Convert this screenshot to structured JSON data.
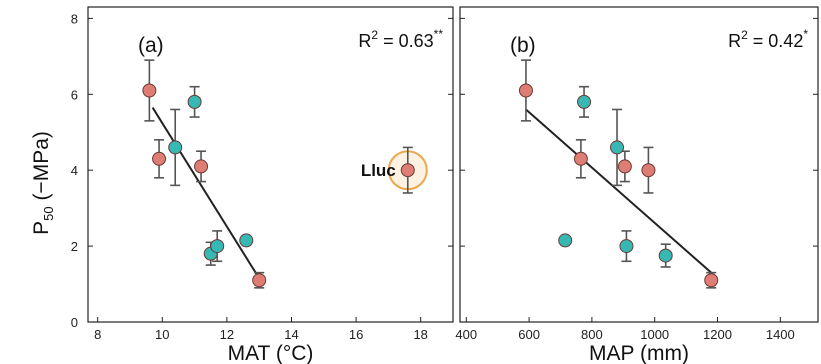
{
  "chart_data": [
    {
      "type": "scatter",
      "panel_label": "(a)",
      "r2_text": "R² = 0.63**",
      "r2_main": "R",
      "r2_sup": "2",
      "r2_value": " = 0.63",
      "r2_star": "**",
      "xlabel": "MAT (°C)",
      "ylabel": "P50 (−MPa)",
      "xlim": [
        7.7,
        19.0
      ],
      "ylim": [
        0,
        8.3
      ],
      "xticks": [
        8,
        10,
        12,
        14,
        16,
        18
      ],
      "yticks": [
        0,
        2,
        4,
        6,
        8
      ],
      "grid": false,
      "fit_line": {
        "x": [
          9.7,
          13.0
        ],
        "y": [
          5.65,
          1.15
        ]
      },
      "annotation": {
        "text": "Lluc",
        "x": 17.6,
        "y": 4.0
      },
      "series": [
        {
          "color": "red",
          "points": [
            {
              "x": 9.6,
              "y": 6.1,
              "err": 0.8
            },
            {
              "x": 9.9,
              "y": 4.3,
              "err": 0.5
            },
            {
              "x": 11.2,
              "y": 4.1,
              "err": 0.4
            },
            {
              "x": 13.0,
              "y": 1.1,
              "err": 0.2
            },
            {
              "x": 17.6,
              "y": 4.0,
              "err": 0.6
            }
          ]
        },
        {
          "color": "teal",
          "points": [
            {
              "x": 10.4,
              "y": 4.6,
              "err": 1.0
            },
            {
              "x": 11.0,
              "y": 5.8,
              "err": 0.4
            },
            {
              "x": 11.5,
              "y": 1.8,
              "err": 0.3
            },
            {
              "x": 11.7,
              "y": 2.0,
              "err": 0.4
            },
            {
              "x": 12.6,
              "y": 2.15,
              "err": 0.0
            }
          ]
        }
      ]
    },
    {
      "type": "scatter",
      "panel_label": "(b)",
      "r2_text": "R² = 0.42*",
      "r2_main": "R",
      "r2_sup": "2",
      "r2_value": " = 0.42",
      "r2_star": "*",
      "xlabel": "MAP (mm)",
      "ylabel": "",
      "xlim": [
        380,
        1520
      ],
      "ylim": [
        0,
        8.3
      ],
      "xticks": [
        400,
        600,
        800,
        1000,
        1200,
        1400
      ],
      "yticks": [
        0,
        2,
        4,
        6,
        8
      ],
      "grid": false,
      "fit_line": {
        "x": [
          590,
          1180
        ],
        "y": [
          5.6,
          1.3
        ]
      },
      "series": [
        {
          "color": "red",
          "points": [
            {
              "x": 590,
              "y": 6.1,
              "err": 0.8
            },
            {
              "x": 765,
              "y": 4.3,
              "err": 0.5
            },
            {
              "x": 905,
              "y": 4.1,
              "err": 0.4
            },
            {
              "x": 980,
              "y": 4.0,
              "err": 0.6
            },
            {
              "x": 1180,
              "y": 1.1,
              "err": 0.2
            }
          ]
        },
        {
          "color": "teal",
          "points": [
            {
              "x": 715,
              "y": 2.15,
              "err": 0.0
            },
            {
              "x": 775,
              "y": 5.8,
              "err": 0.4
            },
            {
              "x": 880,
              "y": 4.6,
              "err": 1.0
            },
            {
              "x": 910,
              "y": 2.0,
              "err": 0.4
            },
            {
              "x": 1035,
              "y": 1.75,
              "err": 0.3
            }
          ]
        }
      ]
    }
  ],
  "colors": {
    "red": "#de7d73",
    "teal": "#36b8b4",
    "point_edge": "#6b3a34",
    "halo": "#e8a94f",
    "errorbar": "#555555",
    "fit": "#222222"
  }
}
